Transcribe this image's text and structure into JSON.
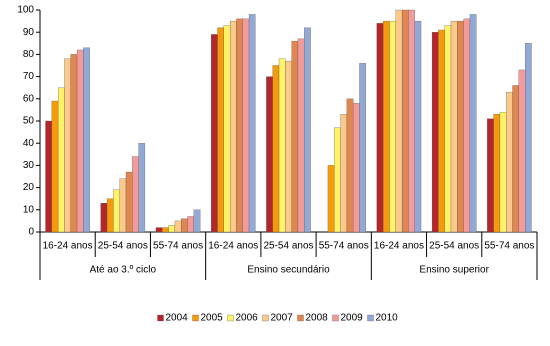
{
  "chart_data": {
    "type": "bar",
    "categories": [
      "16-24 anos",
      "25-54 anos",
      "55-74 anos",
      "16-24 anos",
      "25-54 anos",
      "55-74 anos",
      "16-24 anos",
      "25-54 anos",
      "55-74 anos"
    ],
    "groups": [
      "Até ao 3.º ciclo",
      "Ensino secundário",
      "Ensino superior"
    ],
    "series": [
      {
        "name": "2004",
        "color": "#b3262b",
        "values": [
          50,
          13,
          2,
          89,
          70,
          null,
          94,
          90,
          51
        ]
      },
      {
        "name": "2005",
        "color": "#f59a0a",
        "values": [
          59,
          15,
          2,
          92,
          75,
          30,
          95,
          91,
          53
        ]
      },
      {
        "name": "2006",
        "color": "#fff266",
        "values": [
          65,
          19,
          3,
          93,
          78,
          47,
          95,
          93,
          54
        ]
      },
      {
        "name": "2007",
        "color": "#fbc98a",
        "values": [
          78,
          24,
          5,
          95,
          77,
          53,
          100,
          95,
          63
        ]
      },
      {
        "name": "2008",
        "color": "#e08650",
        "values": [
          80,
          27,
          6,
          96,
          86,
          60,
          100,
          95,
          66
        ]
      },
      {
        "name": "2009",
        "color": "#f59a9a",
        "values": [
          82,
          34,
          7,
          96,
          87,
          58,
          100,
          96,
          73
        ]
      },
      {
        "name": "2010",
        "color": "#92a9d6",
        "values": [
          83,
          40,
          10,
          98,
          92,
          76,
          95,
          98,
          85
        ]
      }
    ],
    "ylim": [
      0,
      100
    ],
    "yticks": [
      0,
      10,
      20,
      30,
      40,
      50,
      60,
      70,
      80,
      90,
      100
    ],
    "grid": false,
    "legend": "bottom"
  }
}
